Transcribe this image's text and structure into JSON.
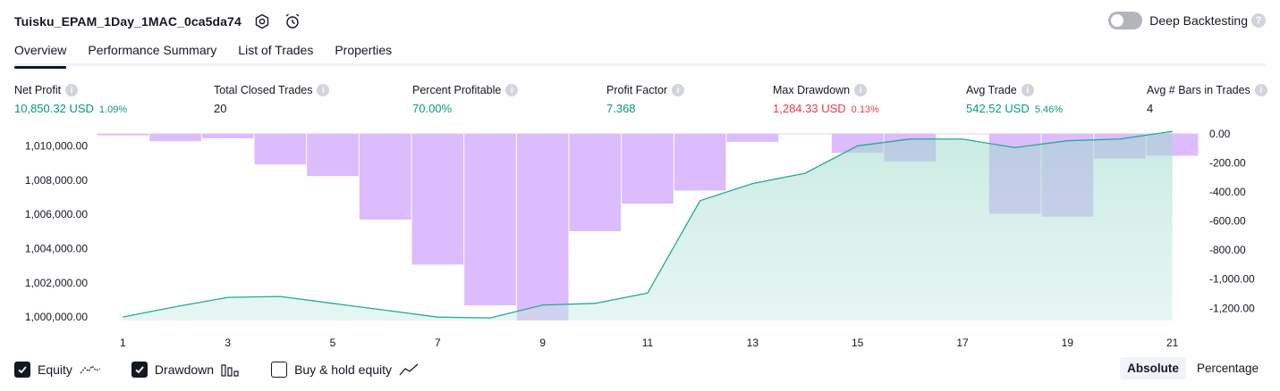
{
  "header": {
    "title": "Tuisku_EPAM_1Day_1MAC_0ca5da74",
    "icons": [
      "settings-icon",
      "add-alert-icon"
    ],
    "deep_backtesting_label": "Deep Backtesting",
    "deep_backtesting_on": false
  },
  "tabs": [
    {
      "label": "Overview",
      "active": true
    },
    {
      "label": "Performance Summary",
      "active": false
    },
    {
      "label": "List of Trades",
      "active": false
    },
    {
      "label": "Properties",
      "active": false
    }
  ],
  "metrics": {
    "net_profit": {
      "label": "Net Profit",
      "value": "10,850.32 USD",
      "sub": "1.09%"
    },
    "total_closed_trades": {
      "label": "Total Closed Trades",
      "value": "20"
    },
    "percent_profitable": {
      "label": "Percent Profitable",
      "value": "70.00%"
    },
    "profit_factor": {
      "label": "Profit Factor",
      "value": "7.368"
    },
    "max_drawdown": {
      "label": "Max Drawdown",
      "value": "1,284.33 USD",
      "sub": "0.13%"
    },
    "avg_trade": {
      "label": "Avg Trade",
      "value": "542.52 USD",
      "sub": "5.46%"
    },
    "avg_bars": {
      "label": "Avg # Bars in Trades",
      "value": "4"
    }
  },
  "colors": {
    "equity_line": "#22ab94",
    "equity_fill": "#c8ebe4",
    "drawdown": "#dcbcfc",
    "positive": "#089981",
    "negative": "#f23645"
  },
  "chart_data": {
    "type": "area",
    "x": [
      1,
      2,
      3,
      4,
      5,
      6,
      7,
      8,
      9,
      10,
      11,
      12,
      13,
      14,
      15,
      16,
      17,
      18,
      19,
      20,
      21
    ],
    "x_tick_labels": [
      "1",
      "3",
      "5",
      "7",
      "9",
      "11",
      "13",
      "15",
      "17",
      "19",
      "21"
    ],
    "left_axis": {
      "ticks": [
        1000000,
        1002000,
        1004000,
        1006000,
        1008000,
        1010000
      ],
      "tick_labels": [
        "1,000,000.00",
        "1,002,000.00",
        "1,004,000.00",
        "1,006,000.00",
        "1,008,000.00",
        "1,010,000.00"
      ],
      "ylim": [
        999800,
        1010700
      ]
    },
    "right_axis": {
      "ticks": [
        0,
        -200,
        -400,
        -600,
        -800,
        -1000,
        -1200
      ],
      "tick_labels": [
        "0.00",
        "-200.00",
        "-400.00",
        "-600.00",
        "-800.00",
        "-1,000.00",
        "-1,200.00"
      ],
      "ylim": [
        -1284.33,
        0
      ]
    },
    "series": [
      {
        "name": "Equity",
        "axis": "left",
        "values": [
          1000000,
          1000600,
          1001150,
          1001200,
          1000800,
          1000400,
          1000000,
          999950,
          1000700,
          1000800,
          1001400,
          1006800,
          1007800,
          1008400,
          1010000,
          1010400,
          1010400,
          1009900,
          1010300,
          1010400,
          1010850
        ]
      },
      {
        "name": "Drawdown",
        "axis": "right",
        "values": [
          -10,
          -50,
          -30,
          -210,
          -290,
          -590,
          -900,
          -1180,
          -1284.33,
          -670,
          -480,
          -390,
          -55,
          0,
          -130,
          -190,
          0,
          -550,
          -570,
          -170,
          -150
        ]
      }
    ],
    "grid": false,
    "legend": "bottom-left"
  },
  "legend": {
    "equity": {
      "label": "Equity",
      "checked": true
    },
    "drawdown": {
      "label": "Drawdown",
      "checked": true
    },
    "buy_hold": {
      "label": "Buy & hold equity",
      "checked": false
    }
  },
  "modes": [
    {
      "label": "Absolute",
      "active": true
    },
    {
      "label": "Percentage",
      "active": false
    }
  ]
}
